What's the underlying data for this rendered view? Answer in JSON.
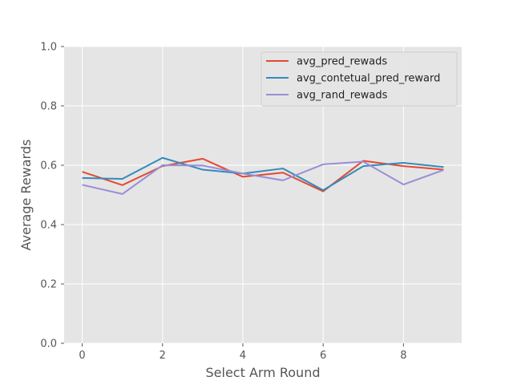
{
  "chart_data": {
    "type": "line",
    "title": "",
    "xlabel": "Select Arm Round",
    "ylabel": "Average Rewards",
    "xlim": [
      -0.45,
      9.45
    ],
    "ylim": [
      0.0,
      1.0
    ],
    "xticks": [
      0,
      2,
      4,
      6,
      8
    ],
    "yticks": [
      0.0,
      0.2,
      0.4,
      0.6,
      0.8,
      1.0
    ],
    "xtick_labels": [
      "0",
      "2",
      "4",
      "6",
      "8"
    ],
    "ytick_labels": [
      "0.0",
      "0.2",
      "0.4",
      "0.6",
      "0.8",
      "1.0"
    ],
    "grid": true,
    "legend_position": "top-right",
    "x": [
      0,
      1,
      2,
      3,
      4,
      5,
      6,
      7,
      8,
      9
    ],
    "series": [
      {
        "name": "avg_pred_rewads",
        "color": "#e24a33",
        "values": [
          0.578,
          0.533,
          0.597,
          0.622,
          0.561,
          0.575,
          0.512,
          0.615,
          0.597,
          0.585
        ]
      },
      {
        "name": "avg_contetual_pred_reward",
        "color": "#348abd",
        "values": [
          0.557,
          0.554,
          0.625,
          0.585,
          0.572,
          0.589,
          0.516,
          0.597,
          0.608,
          0.594
        ]
      },
      {
        "name": "avg_rand_rewads",
        "color": "#988ed5",
        "values": [
          0.534,
          0.503,
          0.6,
          0.599,
          0.572,
          0.549,
          0.603,
          0.612,
          0.535,
          0.584
        ]
      }
    ]
  }
}
